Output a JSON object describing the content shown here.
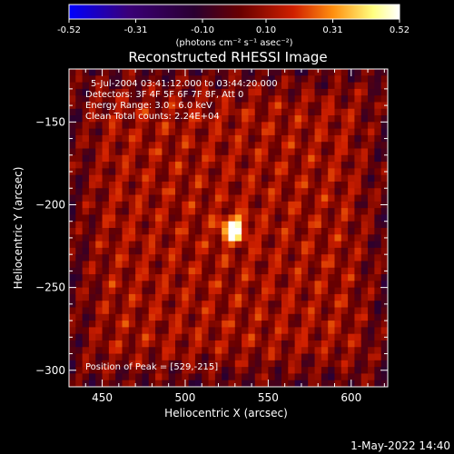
{
  "chart_data": {
    "type": "heatmap",
    "title": "Reconstructed RHESSI Image",
    "xlabel": "Heliocentric X (arcsec)",
    "ylabel": "Heliocentric Y (arcsec)",
    "xlim": [
      430,
      622
    ],
    "ylim": [
      -310,
      -118
    ],
    "xticks": [
      450,
      500,
      550,
      600
    ],
    "yticks": [
      -150,
      -200,
      -250,
      -300
    ],
    "colorbar": {
      "min": -0.52,
      "max": 0.52,
      "ticks": [
        "-0.52",
        "-0.31",
        "-0.10",
        "0.10",
        "0.31",
        "0.52"
      ],
      "units": "(photons cm⁻² s⁻¹ asec⁻²)",
      "colors": [
        "#0000ff",
        "#3a0078",
        "#2a0030",
        "#6a0000",
        "#d02000",
        "#ff9010",
        "#ffff80",
        "#ffffff"
      ]
    },
    "peak": {
      "x": 529,
      "y": -215,
      "value": 0.52
    },
    "info_lines": [
      "5-Jul-2004 03:41:12.000 to 03:44:20.000",
      "Detectors: 3F 4F 5F 6F 7F 8F, Att 0",
      "Energy Range: 3.0 - 6.0 keV",
      "Clean     Total counts: 2.24E+04"
    ],
    "peak_label": "Position of Peak = [529,-215]"
  },
  "footer": {
    "date": "1-May-2022 14:40"
  }
}
